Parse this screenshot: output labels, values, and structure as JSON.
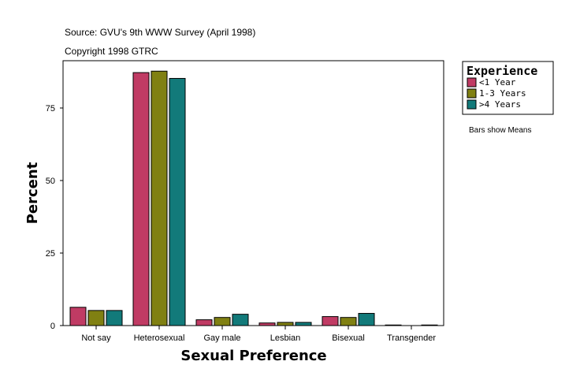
{
  "chart_data": {
    "type": "bar",
    "source": "Source: GVU's 9th WWW Survey (April 1998)",
    "copyright": "Copyright 1998 GTRC",
    "xlabel": "Sexual Preference",
    "ylabel": "Percent",
    "ylim": [
      0,
      90
    ],
    "yticks": [
      0,
      25,
      50,
      75
    ],
    "grid": false,
    "legend_title": "Experience",
    "legend_placement": "top-right",
    "note": "Bars show Means",
    "categories": [
      "Not say",
      "Heterosexual",
      "Gay male",
      "Lesbian",
      "Bisexual",
      "Transgender"
    ],
    "series": [
      {
        "name": "<1 Year",
        "color": "#C03B64",
        "values": [
          6.3,
          87.2,
          2.0,
          0.9,
          3.1,
          0.2
        ]
      },
      {
        "name": "1-3 Years",
        "color": "#808012",
        "values": [
          5.2,
          87.7,
          2.8,
          1.1,
          2.8,
          0.0
        ]
      },
      {
        "name": ">4 Years",
        "color": "#127A7A",
        "values": [
          5.2,
          85.2,
          3.9,
          1.1,
          4.2,
          0.2
        ]
      }
    ]
  }
}
